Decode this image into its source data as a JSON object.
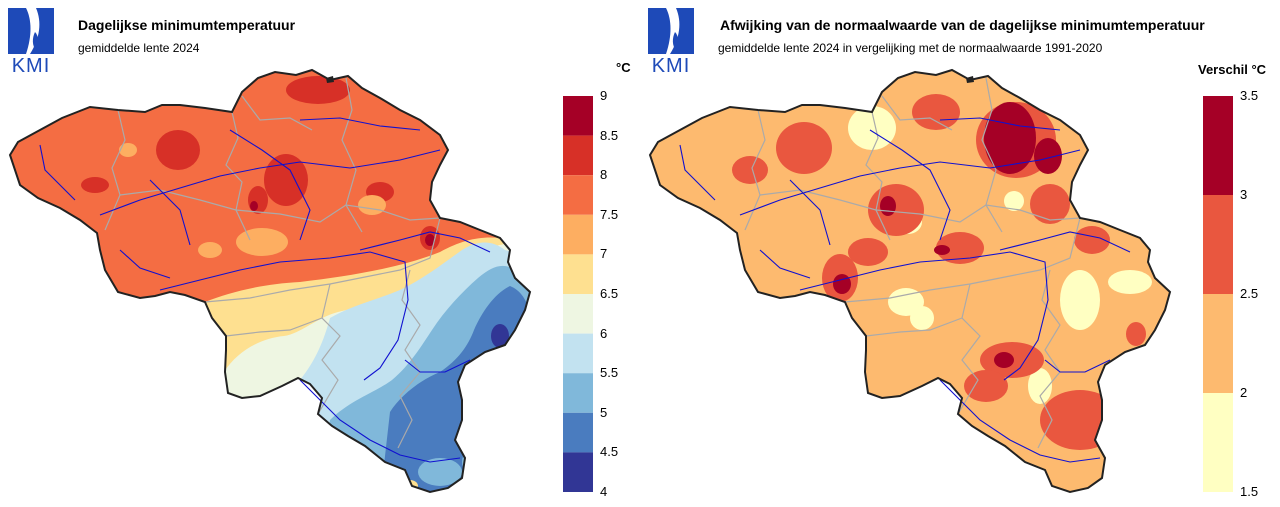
{
  "logo_text": "KMI",
  "left": {
    "title": "Dagelijkse minimumtemperatuur",
    "subtitle": "gemiddelde lente 2024",
    "unit": "°C",
    "legend": {
      "ticks": [
        "9",
        "8.5",
        "8",
        "7.5",
        "7",
        "6.5",
        "6",
        "5.5",
        "5",
        "4.5",
        "4"
      ],
      "classes": [
        {
          "from": 8.5,
          "to": 9,
          "color": "#a50026"
        },
        {
          "from": 8,
          "to": 8.5,
          "color": "#d73027"
        },
        {
          "from": 7.5,
          "to": 8,
          "color": "#f46d43"
        },
        {
          "from": 7,
          "to": 7.5,
          "color": "#fdae61"
        },
        {
          "from": 6.5,
          "to": 7,
          "color": "#fee090"
        },
        {
          "from": 6,
          "to": 6.5,
          "color": "#eef6e2"
        },
        {
          "from": 5.5,
          "to": 6,
          "color": "#c2e2f0"
        },
        {
          "from": 5,
          "to": 5.5,
          "color": "#80b8da"
        },
        {
          "from": 4.5,
          "to": 5,
          "color": "#4a7cbf"
        },
        {
          "from": 4,
          "to": 4.5,
          "color": "#313695"
        }
      ]
    }
  },
  "right": {
    "title": "Afwijking van de normaalwaarde van de dagelijkse minimumtemperatuur",
    "subtitle": "gemiddelde lente 2024 in vergelijking met de normaalwaarde 1991-2020",
    "unit": "Verschil °C",
    "legend": {
      "ticks": [
        "3.5",
        "3",
        "2.5",
        "2",
        "1.5"
      ],
      "classes": [
        {
          "from": 3,
          "to": 3.5,
          "color": "#a50026"
        },
        {
          "from": 2.5,
          "to": 3,
          "color": "#e9573f"
        },
        {
          "from": 2,
          "to": 2.5,
          "color": "#fdba6f"
        },
        {
          "from": 1.5,
          "to": 2,
          "color": "#ffffc2"
        }
      ]
    }
  }
}
